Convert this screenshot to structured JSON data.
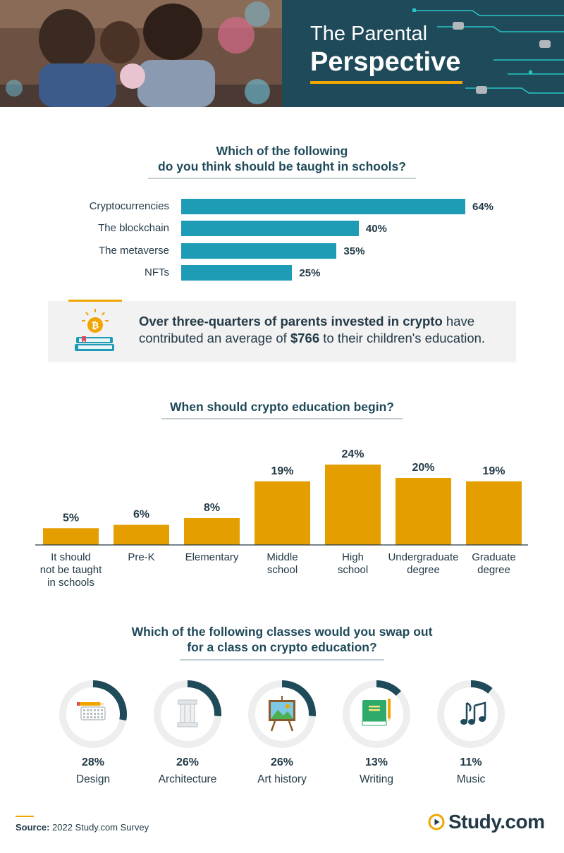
{
  "header": {
    "title_line1": "The Parental",
    "title_line2": "Perspective"
  },
  "colors": {
    "header_bg": "#1f4a5a",
    "teal_bar": "#1e9cb6",
    "gold_bar": "#e59e00",
    "accent": "#f0a500",
    "donut_fill": "#1f4a5a",
    "donut_track": "#eeeeee"
  },
  "section1": {
    "title_line1": "Which of the following",
    "title_line2": "do you think should be taught in schools?"
  },
  "callout": {
    "bold1": "Over three-quarters of parents invested in crypto",
    "text1": " have contributed an average of ",
    "bold2": "$766",
    "text2": " to their children's education.",
    "icon": "bitcoin-books-icon"
  },
  "section2": {
    "title": "When should crypto education begin?"
  },
  "section3": {
    "title_line1": "Which of the following classes would you swap out",
    "title_line2": "for a class on crypto education?"
  },
  "chart_data": [
    {
      "type": "bar",
      "orientation": "horizontal",
      "title": "Which of the following do you think should be taught in schools?",
      "categories": [
        "Cryptocurrencies",
        "The blockchain",
        "The metaverse",
        "NFTs"
      ],
      "values": [
        64,
        40,
        35,
        25
      ],
      "value_labels": [
        "64%",
        "40%",
        "35%",
        "25%"
      ]
    },
    {
      "type": "bar",
      "orientation": "vertical",
      "title": "When should crypto education begin?",
      "categories": [
        [
          "It should",
          "not be taught",
          "in schools"
        ],
        [
          "Pre-K"
        ],
        [
          "Elementary"
        ],
        [
          "Middle",
          "school"
        ],
        [
          "High",
          "school"
        ],
        [
          "Undergraduate",
          "degree"
        ],
        [
          "Graduate",
          "degree"
        ]
      ],
      "values": [
        5,
        6,
        8,
        19,
        24,
        20,
        19
      ],
      "value_labels": [
        "5%",
        "6%",
        "8%",
        "19%",
        "24%",
        "20%",
        "19%"
      ]
    },
    {
      "type": "pie",
      "style": "donut",
      "title": "Which of the following classes would you swap out for a class on crypto education?",
      "categories": [
        "Design",
        "Architecture",
        "Art history",
        "Writing",
        "Music"
      ],
      "values": [
        28,
        26,
        26,
        13,
        11
      ],
      "value_labels": [
        "28%",
        "26%",
        "26%",
        "13%",
        "11%"
      ],
      "icons": [
        "keyboard-pencil-icon",
        "column-icon",
        "easel-painting-icon",
        "book-pencil-icon",
        "music-notes-icon"
      ]
    }
  ],
  "footer": {
    "source_label": "Source:",
    "source_text": " 2022 Study.com Survey",
    "logo_text": "Study.com"
  }
}
